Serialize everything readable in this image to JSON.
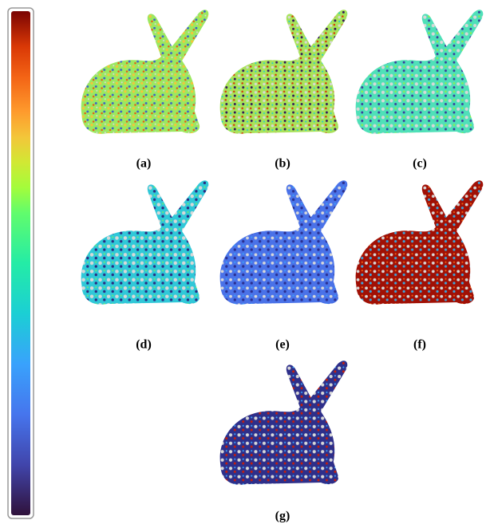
{
  "figure": {
    "panels": [
      {
        "label": "(a)"
      },
      {
        "label": "(b)"
      },
      {
        "label": "(c)"
      },
      {
        "label": "(d)"
      },
      {
        "label": "(e)"
      },
      {
        "label": "(f)"
      },
      {
        "label": "(g)"
      }
    ]
  }
}
